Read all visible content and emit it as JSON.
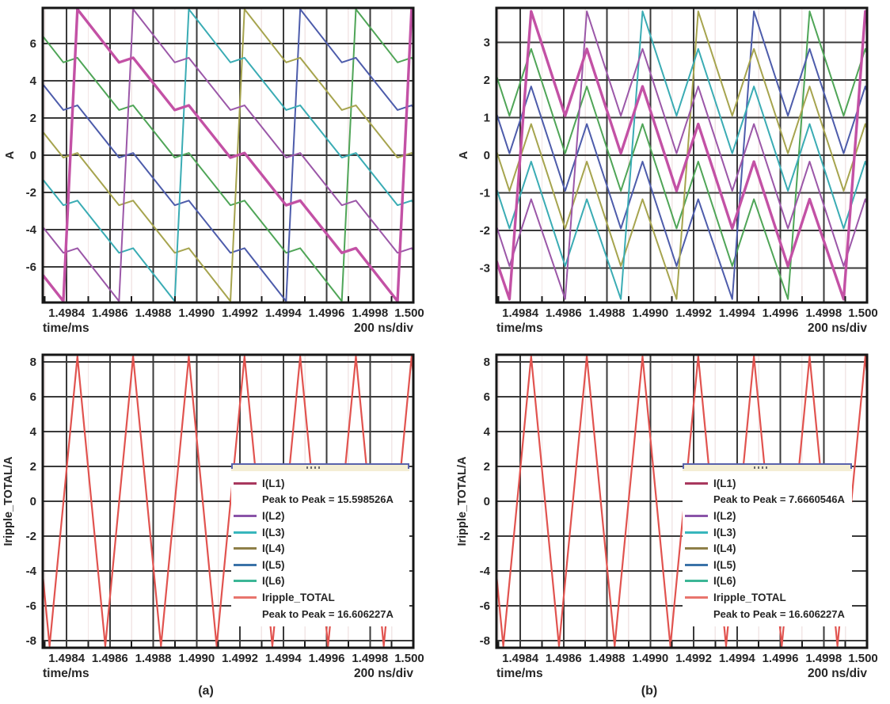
{
  "captions": {
    "a": "(a)",
    "b": "(b)"
  },
  "chart_data": [
    {
      "id": "top_left",
      "type": "line",
      "title": "",
      "xlabel": "time/ms",
      "xnote": "200 ns/div",
      "ylabel": "A",
      "xlim": [
        1.49829,
        1.5
      ],
      "ylim": [
        -7.92,
        7.92
      ],
      "xtick_vals": [
        1.4984,
        1.4986,
        1.4988,
        1.499,
        1.4992,
        1.4994,
        1.4996,
        1.4998,
        1.5
      ],
      "xtick_labels": [
        "1.4984",
        "1.4986",
        "1.4988",
        "1.4990",
        "1.4992",
        "1.4994",
        "1.4996",
        "1.4998",
        "1.500"
      ],
      "ytick_vals": [
        -6,
        -4,
        -2,
        0,
        2,
        4,
        6
      ],
      "grid": true,
      "wave": {
        "kind": "phases",
        "period_ns": 1542,
        "interleave_ns": 257,
        "first_peak_ms": 1.49845,
        "keyframes_ns": [
          [
            0,
            7.85
          ],
          [
            192,
            4.99
          ],
          [
            257,
            5.24
          ],
          [
            449,
            2.43
          ],
          [
            514,
            2.68
          ],
          [
            706,
            -0.13
          ],
          [
            771,
            0.12
          ],
          [
            963,
            -2.69
          ],
          [
            1028,
            -2.44
          ],
          [
            1220,
            -5.25
          ],
          [
            1285,
            -5.0
          ],
          [
            1477,
            -7.85
          ],
          [
            1542,
            7.85
          ]
        ],
        "series": [
          {
            "id": "l1",
            "label": "I(L1)",
            "color": "#c351a5",
            "width": 3.4,
            "offset": 0
          },
          {
            "id": "l2",
            "label": "I(L2)",
            "color": "#9b57a8",
            "width": 2.0,
            "offset": 1
          },
          {
            "id": "l3",
            "label": "I(L3)",
            "color": "#3aacb4",
            "width": 2.0,
            "offset": 2
          },
          {
            "id": "l4",
            "label": "I(L4)",
            "color": "#a6a44e",
            "width": 2.0,
            "offset": 3
          },
          {
            "id": "l5",
            "label": "I(L5)",
            "color": "#4d5cab",
            "width": 2.0,
            "offset": 4
          },
          {
            "id": "l6",
            "label": "I(L6)",
            "color": "#4fa557",
            "width": 2.0,
            "offset": 5
          }
        ]
      }
    },
    {
      "id": "top_right",
      "type": "line",
      "title": "",
      "xlabel": "time/ms",
      "xnote": "200 ns/div",
      "ylabel": "A",
      "xlim": [
        1.49829,
        1.5
      ],
      "ylim": [
        -3.92,
        3.92
      ],
      "xtick_vals": [
        1.4984,
        1.4986,
        1.4988,
        1.499,
        1.4992,
        1.4994,
        1.4996,
        1.4998,
        1.5
      ],
      "xtick_labels": [
        "1.4984",
        "1.4986",
        "1.4988",
        "1.4990",
        "1.4992",
        "1.4994",
        "1.4996",
        "1.4998",
        "1.500"
      ],
      "ytick_vals": [
        -3,
        -2,
        -1,
        0,
        1,
        2,
        3
      ],
      "grid": true,
      "wave": {
        "kind": "phases",
        "period_ns": 1542,
        "interleave_ns": 257,
        "first_peak_ms": 1.49845,
        "keyframes_ns": [
          [
            0,
            3.83
          ],
          [
            157,
            1.05
          ],
          [
            257,
            2.83
          ],
          [
            414,
            0.05
          ],
          [
            514,
            1.83
          ],
          [
            671,
            -0.95
          ],
          [
            771,
            0.83
          ],
          [
            928,
            -1.95
          ],
          [
            1028,
            -0.17
          ],
          [
            1185,
            -2.95
          ],
          [
            1285,
            -1.17
          ],
          [
            1442,
            -3.83
          ],
          [
            1542,
            3.83
          ]
        ],
        "series": [
          {
            "id": "l1",
            "label": "I(L1)",
            "color": "#c351a5",
            "width": 3.4,
            "offset": 0
          },
          {
            "id": "l2",
            "label": "I(L2)",
            "color": "#9b57a8",
            "width": 2.0,
            "offset": 1
          },
          {
            "id": "l3",
            "label": "I(L3)",
            "color": "#3aacb4",
            "width": 2.0,
            "offset": 2
          },
          {
            "id": "l4",
            "label": "I(L4)",
            "color": "#a6a44e",
            "width": 2.0,
            "offset": 3
          },
          {
            "id": "l5",
            "label": "I(L5)",
            "color": "#4d5cab",
            "width": 2.0,
            "offset": 4
          },
          {
            "id": "l6",
            "label": "I(L6)",
            "color": "#4fa557",
            "width": 2.0,
            "offset": 5
          }
        ]
      }
    },
    {
      "id": "bottom_left",
      "type": "line",
      "title": "",
      "xlabel": "time/ms",
      "xnote": "200 ns/div",
      "ylabel": "Iripple_TOTAL/A",
      "xlim": [
        1.49829,
        1.5
      ],
      "ylim": [
        -8.4,
        8.4
      ],
      "xtick_vals": [
        1.4984,
        1.4986,
        1.4988,
        1.499,
        1.4992,
        1.4994,
        1.4996,
        1.4998,
        1.5
      ],
      "xtick_labels": [
        "1.4984",
        "1.4986",
        "1.4988",
        "1.4990",
        "1.4992",
        "1.4994",
        "1.4996",
        "1.4998",
        "1.500"
      ],
      "ytick_vals": [
        -8,
        -6,
        -4,
        -2,
        0,
        2,
        4,
        6,
        8
      ],
      "grid": true,
      "wave": {
        "kind": "triangle",
        "label": "Iripple_TOTAL",
        "period_ns": 257,
        "first_peak_ms": 1.49845,
        "amplitude": 8.3,
        "color": "#e1534f",
        "width": 2.2
      },
      "legend": {
        "entries": [
          {
            "type": "series",
            "label": "I(L1)",
            "color": "#a8385e"
          },
          {
            "type": "note",
            "text": "Peak to Peak = 15.598526A"
          },
          {
            "type": "series",
            "label": "I(L2)",
            "color": "#8a54a8"
          },
          {
            "type": "series",
            "label": "I(L3)",
            "color": "#38b6bc"
          },
          {
            "type": "series",
            "label": "I(L4)",
            "color": "#8e7f48"
          },
          {
            "type": "series",
            "label": "I(L5)",
            "color": "#3a72a8"
          },
          {
            "type": "series",
            "label": "I(L6)",
            "color": "#3cb696"
          },
          {
            "type": "series",
            "label": "Iripple_TOTAL",
            "color": "#e8756d"
          },
          {
            "type": "note",
            "text": "Peak to Peak = 16.606227A"
          }
        ]
      }
    },
    {
      "id": "bottom_right",
      "type": "line",
      "title": "",
      "xlabel": "time/ms",
      "xnote": "200 ns/div",
      "ylabel": "Iripple_TOTAL/A",
      "xlim": [
        1.49829,
        1.5
      ],
      "ylim": [
        -8.4,
        8.4
      ],
      "xtick_vals": [
        1.4984,
        1.4986,
        1.4988,
        1.499,
        1.4992,
        1.4994,
        1.4996,
        1.4998,
        1.5
      ],
      "xtick_labels": [
        "1.4984",
        "1.4986",
        "1.4988",
        "1.4990",
        "1.4992",
        "1.4994",
        "1.4996",
        "1.4998",
        "1.500"
      ],
      "ytick_vals": [
        -8,
        -6,
        -4,
        -2,
        0,
        2,
        4,
        6,
        8
      ],
      "grid": true,
      "wave": {
        "kind": "triangle",
        "label": "Iripple_TOTAL",
        "period_ns": 257,
        "first_peak_ms": 1.49845,
        "amplitude": 8.3,
        "color": "#e1534f",
        "width": 2.2
      },
      "legend": {
        "entries": [
          {
            "type": "series",
            "label": "I(L1)",
            "color": "#a8385e"
          },
          {
            "type": "note",
            "text": "Peak to Peak = 7.6660546A"
          },
          {
            "type": "series",
            "label": "I(L2)",
            "color": "#8a54a8"
          },
          {
            "type": "series",
            "label": "I(L3)",
            "color": "#38b6bc"
          },
          {
            "type": "series",
            "label": "I(L4)",
            "color": "#8e7f48"
          },
          {
            "type": "series",
            "label": "I(L5)",
            "color": "#3a72a8"
          },
          {
            "type": "series",
            "label": "I(L6)",
            "color": "#3cb696"
          },
          {
            "type": "series",
            "label": "Iripple_TOTAL",
            "color": "#e8756d"
          },
          {
            "type": "note",
            "text": "Peak to Peak = 16.606227A"
          }
        ]
      }
    }
  ]
}
